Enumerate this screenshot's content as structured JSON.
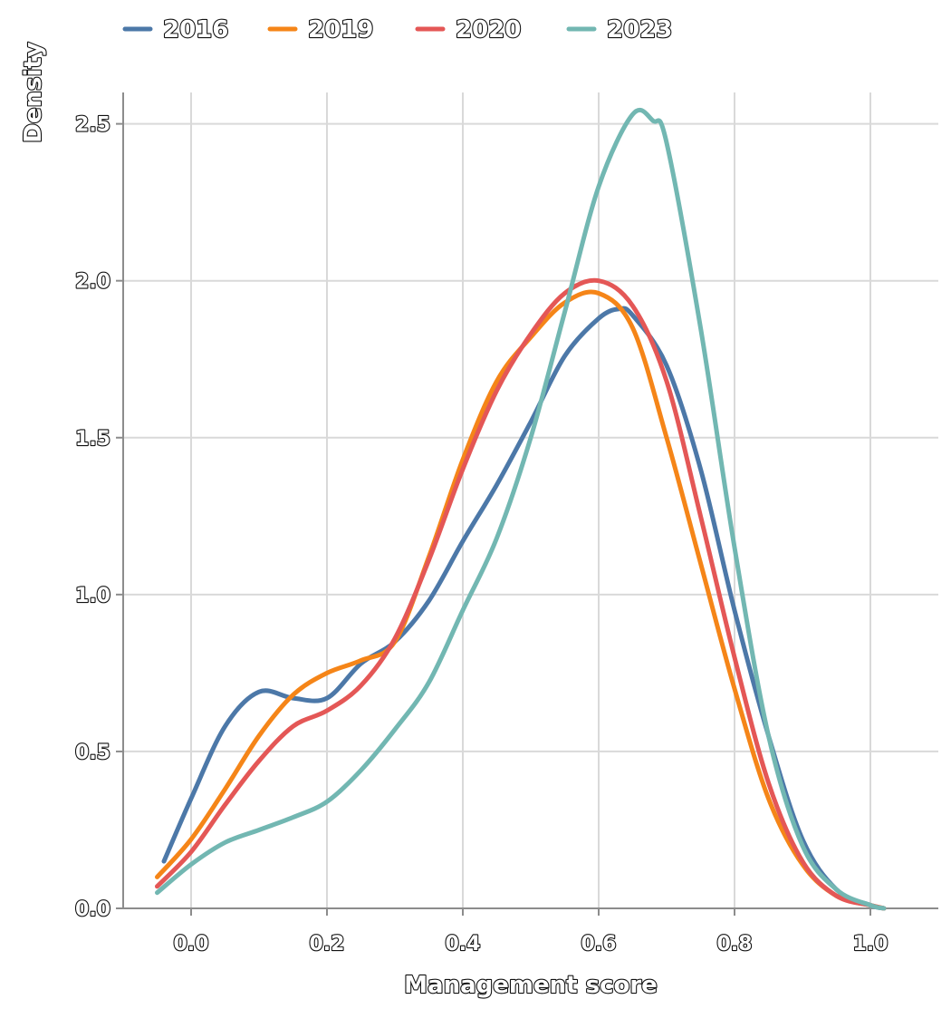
{
  "chart_data": {
    "type": "line",
    "xlabel": "Management score",
    "ylabel": "Density",
    "xlim": [
      -0.1,
      1.1
    ],
    "ylim": [
      0,
      2.6
    ],
    "xticks": [
      "0.0",
      "0.2",
      "0.4",
      "0.6",
      "0.8",
      "1.0"
    ],
    "yticks": [
      "0.0",
      "0.5",
      "1.0",
      "1.5",
      "2.0",
      "2.5"
    ],
    "grid": true,
    "legend_position": "top",
    "series": [
      {
        "name": "2016",
        "color": "#4c78a8",
        "x": [
          -0.04,
          0.0,
          0.05,
          0.1,
          0.15,
          0.2,
          0.25,
          0.3,
          0.35,
          0.4,
          0.45,
          0.5,
          0.55,
          0.6,
          0.63,
          0.65,
          0.7,
          0.75,
          0.8,
          0.85,
          0.9,
          0.95,
          1.0,
          1.02
        ],
        "y": [
          0.15,
          0.35,
          0.58,
          0.69,
          0.67,
          0.67,
          0.78,
          0.85,
          0.98,
          1.17,
          1.35,
          1.55,
          1.76,
          1.88,
          1.91,
          1.89,
          1.73,
          1.4,
          0.95,
          0.55,
          0.22,
          0.06,
          0.01,
          0.0
        ]
      },
      {
        "name": "2019",
        "color": "#f58518",
        "x": [
          -0.05,
          0.0,
          0.05,
          0.1,
          0.15,
          0.2,
          0.25,
          0.3,
          0.35,
          0.4,
          0.45,
          0.5,
          0.55,
          0.6,
          0.65,
          0.7,
          0.75,
          0.8,
          0.85,
          0.9,
          0.95,
          1.0,
          1.02
        ],
        "y": [
          0.1,
          0.22,
          0.38,
          0.55,
          0.68,
          0.75,
          0.79,
          0.85,
          1.12,
          1.43,
          1.68,
          1.82,
          1.93,
          1.96,
          1.85,
          1.5,
          1.1,
          0.7,
          0.35,
          0.14,
          0.04,
          0.01,
          0.0
        ]
      },
      {
        "name": "2020",
        "color": "#e45756",
        "x": [
          -0.05,
          0.0,
          0.05,
          0.1,
          0.15,
          0.2,
          0.25,
          0.3,
          0.35,
          0.4,
          0.45,
          0.5,
          0.55,
          0.6,
          0.65,
          0.7,
          0.75,
          0.8,
          0.85,
          0.9,
          0.95,
          1.0,
          1.02
        ],
        "y": [
          0.07,
          0.18,
          0.33,
          0.47,
          0.58,
          0.63,
          0.71,
          0.86,
          1.11,
          1.4,
          1.65,
          1.83,
          1.96,
          2.0,
          1.92,
          1.68,
          1.25,
          0.8,
          0.4,
          0.15,
          0.04,
          0.01,
          0.0
        ]
      },
      {
        "name": "2023",
        "color": "#72b7b2",
        "x": [
          -0.05,
          0.0,
          0.05,
          0.1,
          0.15,
          0.2,
          0.25,
          0.3,
          0.35,
          0.4,
          0.45,
          0.5,
          0.55,
          0.6,
          0.65,
          0.68,
          0.7,
          0.75,
          0.8,
          0.85,
          0.9,
          0.95,
          1.0,
          1.02
        ],
        "y": [
          0.05,
          0.14,
          0.21,
          0.25,
          0.29,
          0.34,
          0.44,
          0.57,
          0.72,
          0.95,
          1.18,
          1.5,
          1.9,
          2.3,
          2.53,
          2.51,
          2.44,
          1.85,
          1.15,
          0.55,
          0.2,
          0.06,
          0.01,
          0.0
        ]
      }
    ]
  }
}
